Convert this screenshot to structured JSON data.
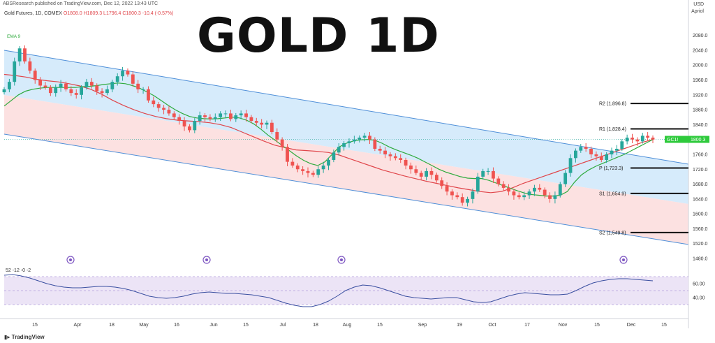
{
  "header": {
    "publisher": "ABSResearch published on TradingView.com, Dec 12, 2022 13:43 UTC",
    "symbol": "Gold Futures, 1D, COMEX",
    "open": "O1808.0",
    "high": "H1809.3",
    "low": "L1796.4",
    "close": "C1800.3",
    "change": "-10.4 (-0.57%)",
    "ema_label": "EMA 9",
    "currency": "USD",
    "unit": "Apriol"
  },
  "overlay_title": "GOLD 1D",
  "brand": "TradingView",
  "colors": {
    "up": "#26a69a",
    "down": "#ef5350",
    "upper_channel": "#cfe8fa",
    "lower_channel": "#fbdcdc",
    "ema_fast": "#2eaa3c",
    "ema_slow": "#e0454a",
    "osc_line": "#3a4fa0",
    "osc_band": "#ece4f6"
  },
  "chart_data": [
    {
      "type": "candlestick",
      "title": "GOLD 1D",
      "y_axis_ticks": [
        "2080.0",
        "2040.0",
        "2000.0",
        "1960.0",
        "1920.0",
        "1880.0",
        "1840.0",
        "1800.0",
        "1760.0",
        "1720.0",
        "1680.0",
        "1640.0",
        "1600.0",
        "1560.0",
        "1520.0",
        "1480.0"
      ],
      "x_axis_ticks": [
        "15",
        "Apr",
        "18",
        "May",
        "16",
        "Jun",
        "15",
        "Jul",
        "18",
        "Aug",
        "15",
        "Sep",
        "19",
        "Oct",
        "17",
        "Nov",
        "15",
        "Dec",
        "15"
      ],
      "ylim": [
        1480,
        2100
      ],
      "current_price": "1800.3",
      "current_price_badge": "GC1!",
      "pivot_levels": [
        {
          "label": "R2 (1,896.8)",
          "value": 1896.8
        },
        {
          "label": "R1 (1,828.4)",
          "value": 1828.4
        },
        {
          "label": "P (1,723.3)",
          "value": 1723.3
        },
        {
          "label": "S1 (1,654.9)",
          "value": 1654.9
        },
        {
          "label": "S2 (1,549.8)",
          "value": 1549.8
        }
      ],
      "closes": [
        1935,
        1955,
        2010,
        2045,
        2010,
        1985,
        1960,
        1945,
        1940,
        1925,
        1940,
        1950,
        1935,
        1925,
        1920,
        1940,
        1955,
        1945,
        1930,
        1925,
        1935,
        1955,
        1970,
        1985,
        1975,
        1950,
        1935,
        1935,
        1905,
        1895,
        1885,
        1880,
        1870,
        1860,
        1850,
        1835,
        1825,
        1850,
        1865,
        1860,
        1855,
        1860,
        1870,
        1870,
        1855,
        1865,
        1870,
        1860,
        1850,
        1845,
        1840,
        1845,
        1820,
        1800,
        1780,
        1740,
        1730,
        1720,
        1715,
        1710,
        1705,
        1720,
        1730,
        1745,
        1765,
        1780,
        1790,
        1795,
        1800,
        1805,
        1810,
        1800,
        1775,
        1770,
        1760,
        1755,
        1750,
        1745,
        1730,
        1720,
        1710,
        1700,
        1715,
        1705,
        1690,
        1675,
        1660,
        1650,
        1645,
        1630,
        1640,
        1660,
        1700,
        1715,
        1715,
        1695,
        1680,
        1670,
        1660,
        1650,
        1645,
        1650,
        1660,
        1670,
        1665,
        1650,
        1640,
        1650,
        1680,
        1710,
        1750,
        1770,
        1780,
        1775,
        1760,
        1755,
        1745,
        1760,
        1770,
        1775,
        1795,
        1805,
        1800,
        1795,
        1810,
        1805,
        1800
      ],
      "ema_fast": [
        1890,
        1905,
        1920,
        1930,
        1935,
        1938,
        1940,
        1940,
        1940,
        1940,
        1940,
        1942,
        1943,
        1945,
        1948,
        1950,
        1952,
        1950,
        1945,
        1938,
        1928,
        1918,
        1905,
        1892,
        1880,
        1870,
        1862,
        1858,
        1856,
        1855,
        1856,
        1858,
        1860,
        1858,
        1852,
        1842,
        1828,
        1812,
        1798,
        1784,
        1770,
        1756,
        1744,
        1735,
        1730,
        1740,
        1760,
        1780,
        1790,
        1796,
        1799,
        1800,
        1798,
        1790,
        1780,
        1772,
        1765,
        1758,
        1750,
        1740,
        1730,
        1720,
        1712,
        1706,
        1700,
        1696,
        1695,
        1695,
        1690,
        1683,
        1676,
        1669,
        1662,
        1656,
        1652,
        1650,
        1648,
        1648,
        1650,
        1660,
        1685,
        1705,
        1718,
        1728,
        1736,
        1744,
        1752,
        1760,
        1770,
        1780,
        1790,
        1800
      ],
      "ema_slow": [
        1975,
        1972,
        1968,
        1962,
        1958,
        1955,
        1950,
        1944,
        1935,
        1922,
        1906,
        1892,
        1880,
        1870,
        1862,
        1856,
        1852,
        1850,
        1848,
        1845,
        1840,
        1832,
        1820,
        1808,
        1796,
        1785,
        1778,
        1772,
        1770,
        1768,
        1765,
        1758,
        1748,
        1738,
        1728,
        1718,
        1710,
        1702,
        1695,
        1688,
        1682,
        1676,
        1670,
        1665,
        1660,
        1657,
        1660,
        1670,
        1682,
        1692,
        1702,
        1712,
        1722,
        1732,
        1742,
        1752,
        1762,
        1772,
        1782,
        1792,
        1800
      ],
      "oscillator": {
        "label": "52 -12 -0 -2",
        "y_ticks": [
          "60.00",
          "40.00"
        ],
        "ylim": [
          20,
          80
        ],
        "values": [
          72,
          73,
          71,
          68,
          64,
          60,
          57,
          55,
          54,
          54,
          55,
          56,
          56,
          55,
          53,
          50,
          46,
          42,
          40,
          39,
          40,
          42,
          45,
          47,
          48,
          47,
          46,
          46,
          45,
          44,
          42,
          40,
          36,
          32,
          29,
          27,
          27,
          30,
          35,
          42,
          50,
          55,
          58,
          57,
          54,
          50,
          46,
          42,
          40,
          39,
          38,
          39,
          40,
          40,
          37,
          34,
          33,
          34,
          38,
          42,
          45,
          47,
          46,
          45,
          44,
          44,
          45,
          50,
          56,
          61,
          64,
          66,
          67,
          67,
          66,
          65,
          64
        ]
      }
    }
  ]
}
